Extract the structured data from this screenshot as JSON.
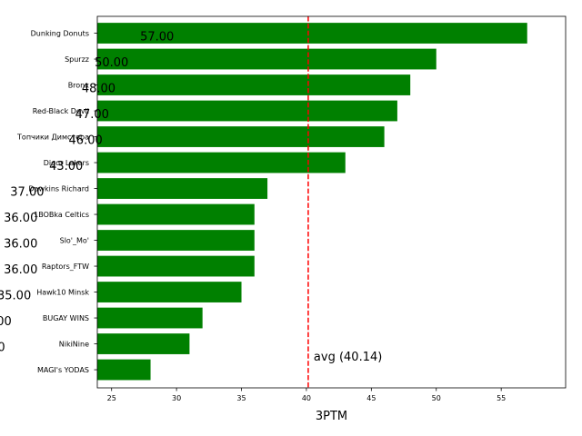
{
  "chart_data": {
    "type": "bar",
    "orientation": "horizontal",
    "title": "",
    "xlabel": "3PTM",
    "ylabel": "",
    "xlim": [
      23.9,
      59.96
    ],
    "xticks": [
      25,
      30,
      35,
      40,
      45,
      50,
      55
    ],
    "grid": false,
    "categories": [
      "Dunking Donuts",
      "Spurzz",
      "Bronx",
      "Red-Black Devil",
      "Топчики Димстера",
      "Digor Lakers",
      "Dawkins Richard",
      "1BOBka Celtics",
      "Slo'_Mo'",
      "Raptors_FTW",
      "Hawk10 Minsk",
      "BUGAY WINS",
      "NikiNine",
      "MAGI's YODAS"
    ],
    "values": [
      57,
      50,
      48,
      47,
      46,
      43,
      37,
      36,
      36,
      36,
      35,
      32,
      31,
      28
    ],
    "value_labels": [
      "57.00",
      "50.00",
      "48.00",
      "47.00",
      "46.00",
      "43.00",
      "37.00",
      "36.00",
      "36.00",
      "36.00",
      "35.00",
      "32.00",
      "31.00",
      "28.00"
    ],
    "bar_color": "#008000",
    "reference_line": {
      "value": 40.14,
      "label": "avg (40.14)",
      "color": "#ff0000",
      "style": "dashed"
    }
  }
}
